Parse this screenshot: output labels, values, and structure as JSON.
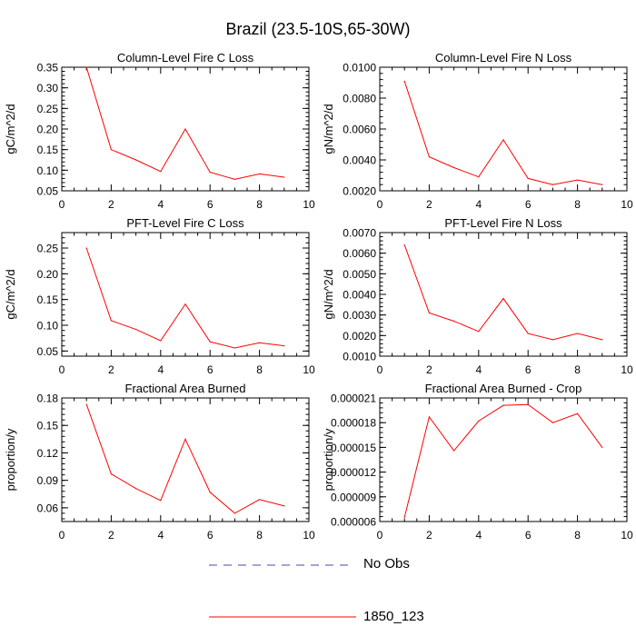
{
  "title": "Brazil (23.5-10S,65-30W)",
  "colors": {
    "series": "#ff0000",
    "obs": "#4a4aa8",
    "axis": "#000000"
  },
  "legend": {
    "items": [
      {
        "label": "No Obs",
        "style": "dashed",
        "color": "#4a4aa8"
      },
      {
        "label": "1850_123",
        "style": "solid",
        "color": "#ff0000"
      }
    ]
  },
  "chart_data": [
    {
      "type": "line",
      "title": "Column-Level Fire C Loss",
      "ylabel": "gC/m^2/d",
      "xlabel": "",
      "xlim": [
        0,
        10
      ],
      "ylim": [
        0.05,
        0.35
      ],
      "xticks": [
        "0",
        "2",
        "4",
        "6",
        "8",
        "10"
      ],
      "yticks": [
        "0.05",
        "0.10",
        "0.15",
        "0.20",
        "0.25",
        "0.30",
        "0.35"
      ],
      "series": [
        {
          "name": "1850_123",
          "x": [
            1,
            2,
            3,
            4,
            5,
            6,
            7,
            8,
            9
          ],
          "values": [
            0.35,
            0.15,
            0.125,
            0.097,
            0.2,
            0.095,
            0.078,
            0.091,
            0.083
          ]
        }
      ]
    },
    {
      "type": "line",
      "title": "Column-Level Fire N Loss",
      "ylabel": "gN/m^2/d",
      "xlabel": "",
      "xlim": [
        0,
        10
      ],
      "ylim": [
        0.002,
        0.01
      ],
      "xticks": [
        "0",
        "2",
        "4",
        "6",
        "8",
        "10"
      ],
      "yticks": [
        "0.0020",
        "0.0040",
        "0.0060",
        "0.0080",
        "0.0100"
      ],
      "series": [
        {
          "name": "1850_123",
          "x": [
            1,
            2,
            3,
            4,
            5,
            6,
            7,
            8,
            9
          ],
          "values": [
            0.0091,
            0.0042,
            0.0035,
            0.0029,
            0.0053,
            0.0028,
            0.0024,
            0.0027,
            0.0024
          ]
        }
      ]
    },
    {
      "type": "line",
      "title": "PFT-Level Fire C Loss",
      "ylabel": "gC/m^2/d",
      "xlabel": "",
      "xlim": [
        0,
        10
      ],
      "ylim": [
        0.04,
        0.28
      ],
      "xticks": [
        "0",
        "2",
        "4",
        "6",
        "8",
        "10"
      ],
      "yticks": [
        "0.05",
        "0.10",
        "0.15",
        "0.20",
        "0.25"
      ],
      "series": [
        {
          "name": "1850_123",
          "x": [
            1,
            2,
            3,
            4,
            5,
            6,
            7,
            8,
            9
          ],
          "values": [
            0.25,
            0.109,
            0.092,
            0.07,
            0.141,
            0.068,
            0.056,
            0.066,
            0.06
          ]
        }
      ]
    },
    {
      "type": "line",
      "title": "PFT-Level Fire N Loss",
      "ylabel": "gN/m^2/d",
      "xlabel": "",
      "xlim": [
        0,
        10
      ],
      "ylim": [
        0.001,
        0.007
      ],
      "xticks": [
        "0",
        "2",
        "4",
        "6",
        "8",
        "10"
      ],
      "yticks": [
        "0.0010",
        "0.0020",
        "0.0030",
        "0.0040",
        "0.0050",
        "0.0060",
        "0.0070"
      ],
      "series": [
        {
          "name": "1850_123",
          "x": [
            1,
            2,
            3,
            4,
            5,
            6,
            7,
            8,
            9
          ],
          "values": [
            0.0064,
            0.0031,
            0.0027,
            0.0022,
            0.0038,
            0.0021,
            0.0018,
            0.0021,
            0.0018
          ]
        }
      ]
    },
    {
      "type": "line",
      "title": "Fractional Area Burned",
      "ylabel": "proportion/y",
      "xlabel": "",
      "xlim": [
        0,
        10
      ],
      "ylim": [
        0.045,
        0.18
      ],
      "xticks": [
        "0",
        "2",
        "4",
        "6",
        "8",
        "10"
      ],
      "yticks": [
        "0.06",
        "0.09",
        "0.12",
        "0.15",
        "0.18"
      ],
      "series": [
        {
          "name": "1850_123",
          "x": [
            1,
            2,
            3,
            4,
            5,
            6,
            7,
            8,
            9
          ],
          "values": [
            0.173,
            0.097,
            0.081,
            0.068,
            0.135,
            0.077,
            0.054,
            0.069,
            0.062
          ]
        }
      ]
    },
    {
      "type": "line",
      "title": "Fractional Area Burned - Crop",
      "ylabel": "proportion/y",
      "xlabel": "",
      "xlim": [
        0,
        10
      ],
      "ylim": [
        6e-06,
        2.1e-05
      ],
      "xticks": [
        "0",
        "2",
        "4",
        "6",
        "8",
        "10"
      ],
      "yticks": [
        "0.000006",
        "0.000009",
        "0.000012",
        "0.000015",
        "0.000018",
        "0.000021"
      ],
      "series": [
        {
          "name": "1850_123",
          "x": [
            1,
            2,
            3,
            4,
            5,
            6,
            7,
            8,
            9
          ],
          "values": [
            6.5e-06,
            1.87e-05,
            1.46e-05,
            1.82e-05,
            2.01e-05,
            2.02e-05,
            1.8e-05,
            1.91e-05,
            1.5e-05
          ]
        }
      ]
    }
  ]
}
